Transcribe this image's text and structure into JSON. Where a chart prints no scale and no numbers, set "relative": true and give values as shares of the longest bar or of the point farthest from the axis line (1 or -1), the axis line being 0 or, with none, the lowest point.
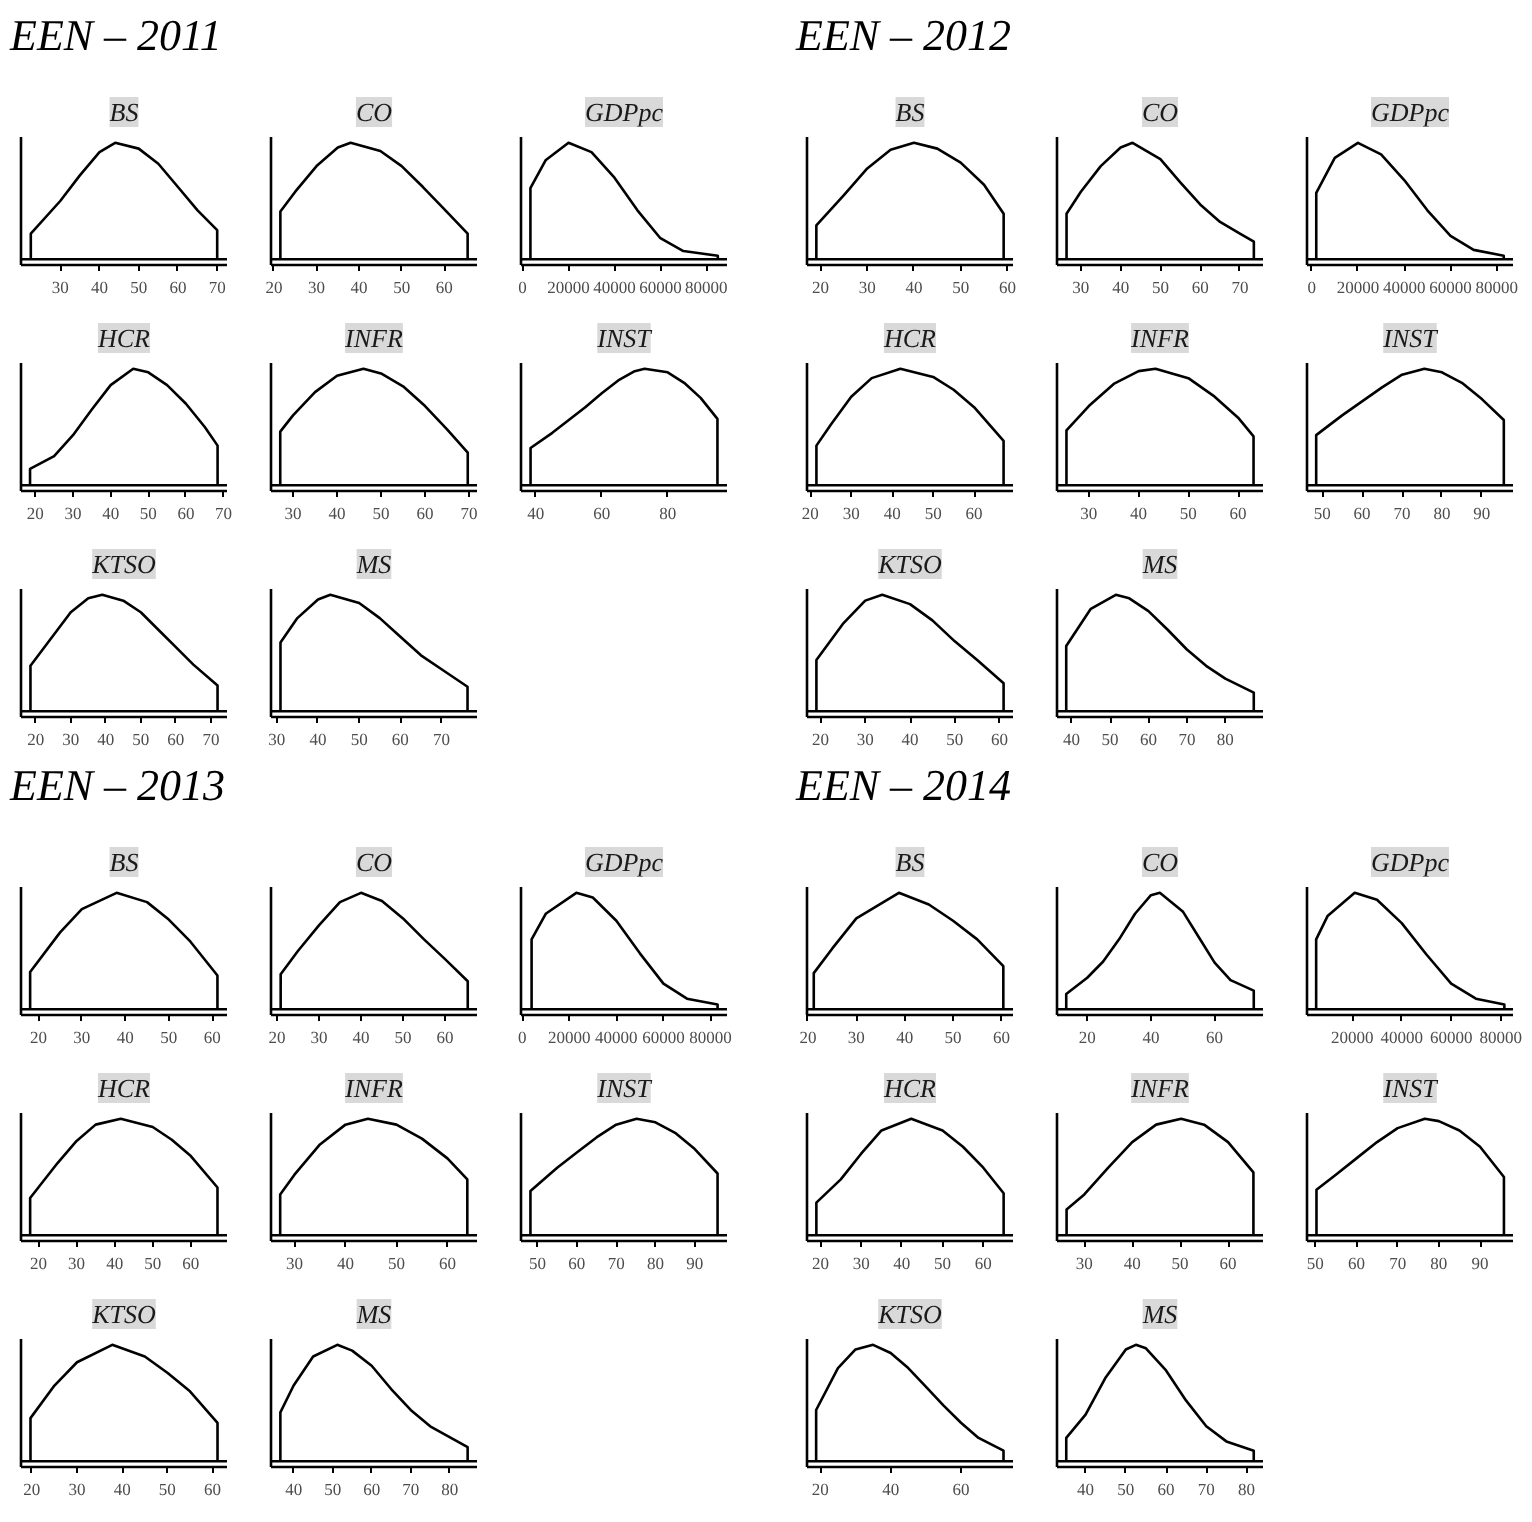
{
  "chart_data": [
    {
      "type": "line",
      "title": "BS",
      "annotations": [
        "EEN – 2011"
      ],
      "color": "#000000",
      "relative": true,
      "tick_labels": "x",
      "ref_lines": [
        {
          "axis": "y",
          "value": 0
        }
      ],
      "xlim": [
        20,
        72.5
      ],
      "xticks": [
        30,
        40,
        50,
        60,
        70
      ],
      "x": [
        22.5,
        22.5,
        30,
        35,
        40,
        44,
        50,
        55,
        60,
        65,
        70,
        70
      ],
      "values": [
        0,
        0.22,
        0.5,
        0.72,
        0.92,
        1,
        0.95,
        0.82,
        0.62,
        0.42,
        0.25,
        0
      ]
    },
    {
      "type": "line",
      "title": "CO",
      "color": "#000000",
      "relative": true,
      "tick_labels": "x",
      "ref_lines": [
        {
          "axis": "y",
          "value": 0
        }
      ],
      "xlim": [
        19.3,
        67.7
      ],
      "xticks": [
        20,
        30,
        40,
        50,
        60
      ],
      "x": [
        21.5,
        21.5,
        25,
        30,
        35,
        38,
        45,
        50,
        55,
        60,
        65.5,
        65.5
      ],
      "values": [
        0,
        0.41,
        0.58,
        0.8,
        0.96,
        1,
        0.93,
        0.8,
        0.62,
        0.43,
        0.22,
        0
      ]
    },
    {
      "type": "line",
      "title": "GDPpc",
      "color": "#000000",
      "relative": true,
      "tick_labels": "x",
      "ref_lines": [
        {
          "axis": "y",
          "value": 0
        }
      ],
      "xlim": [
        -700,
        89000
      ],
      "xticks": [
        0,
        20000,
        40000,
        60000,
        80000
      ],
      "x": [
        3400,
        3400,
        10000,
        20000,
        30000,
        40000,
        50000,
        60000,
        70000,
        85000,
        85000
      ],
      "values": [
        0,
        0.61,
        0.85,
        1,
        0.92,
        0.7,
        0.42,
        0.18,
        0.07,
        0.03,
        0
      ]
    },
    {
      "type": "line",
      "title": "HCR",
      "color": "#000000",
      "relative": true,
      "tick_labels": "x",
      "ref_lines": [
        {
          "axis": "y",
          "value": 0
        }
      ],
      "xlim": [
        16.2,
        70.9
      ],
      "xticks": [
        20,
        30,
        40,
        50,
        60,
        70
      ],
      "x": [
        18.6,
        18.6,
        25,
        30,
        35,
        40,
        46,
        50,
        55,
        60,
        65,
        68.4,
        68.4
      ],
      "values": [
        0,
        0.14,
        0.25,
        0.43,
        0.65,
        0.86,
        1,
        0.97,
        0.86,
        0.7,
        0.5,
        0.34,
        0
      ]
    },
    {
      "type": "line",
      "title": "INFR",
      "color": "#000000",
      "relative": true,
      "tick_labels": "x",
      "ref_lines": [
        {
          "axis": "y",
          "value": 0
        }
      ],
      "xlim": [
        25,
        71.8
      ],
      "xticks": [
        30,
        40,
        50,
        60,
        70
      ],
      "x": [
        27.1,
        27.1,
        30,
        35,
        40,
        46,
        50,
        55,
        60,
        65,
        69.7,
        69.7
      ],
      "values": [
        0,
        0.46,
        0.6,
        0.8,
        0.94,
        1,
        0.96,
        0.85,
        0.68,
        0.48,
        0.28,
        0
      ]
    },
    {
      "type": "line",
      "title": "INST",
      "color": "#000000",
      "relative": true,
      "tick_labels": "x",
      "ref_lines": [
        {
          "axis": "y",
          "value": 0
        }
      ],
      "xlim": [
        35.5,
        98
      ],
      "xticks": [
        40,
        60,
        80
      ],
      "x": [
        38.4,
        38.4,
        45,
        50,
        55,
        60,
        65,
        70,
        73,
        80,
        85,
        90,
        95.1,
        95.1
      ],
      "values": [
        0,
        0.32,
        0.45,
        0.56,
        0.67,
        0.79,
        0.9,
        0.98,
        1,
        0.97,
        0.88,
        0.75,
        0.57,
        0
      ]
    },
    {
      "type": "line",
      "title": "KTSO",
      "color": "#000000",
      "relative": true,
      "tick_labels": "x",
      "ref_lines": [
        {
          "axis": "y",
          "value": 0
        }
      ],
      "xlim": [
        15.8,
        74.6
      ],
      "xticks": [
        20,
        30,
        40,
        50,
        60,
        70
      ],
      "x": [
        18.5,
        18.5,
        25,
        30,
        35,
        39,
        45,
        50,
        55,
        60,
        65,
        71.9,
        71.9
      ],
      "values": [
        0,
        0.39,
        0.65,
        0.85,
        0.97,
        1,
        0.95,
        0.85,
        0.7,
        0.55,
        0.4,
        0.22,
        0
      ]
    },
    {
      "type": "line",
      "title": "MS",
      "color": "#000000",
      "relative": true,
      "tick_labels": "x",
      "ref_lines": [
        {
          "axis": "y",
          "value": 0
        }
      ],
      "xlim": [
        28.6,
        78.6
      ],
      "xticks": [
        30,
        40,
        50,
        60,
        70
      ],
      "x": [
        30.9,
        30.9,
        35,
        40,
        43,
        50,
        55,
        60,
        65,
        70,
        76.3,
        76.3
      ],
      "values": [
        0,
        0.59,
        0.8,
        0.96,
        1,
        0.93,
        0.8,
        0.64,
        0.48,
        0.36,
        0.21,
        0
      ]
    },
    {
      "type": "line",
      "title": "BS",
      "annotations": [
        "EEN – 2012"
      ],
      "color": "#000000",
      "relative": true,
      "tick_labels": "x",
      "ref_lines": [
        {
          "axis": "y",
          "value": 0
        }
      ],
      "xlim": [
        17.1,
        61.2
      ],
      "xticks": [
        20,
        30,
        40,
        50,
        60
      ],
      "x": [
        19.1,
        19.1,
        25,
        30,
        35,
        40,
        45,
        50,
        55,
        59.2,
        59.2
      ],
      "values": [
        0,
        0.29,
        0.55,
        0.78,
        0.94,
        1,
        0.95,
        0.83,
        0.64,
        0.39,
        0
      ]
    },
    {
      "type": "line",
      "title": "CO",
      "color": "#000000",
      "relative": true,
      "tick_labels": "x",
      "ref_lines": [
        {
          "axis": "y",
          "value": 0
        }
      ],
      "xlim": [
        24,
        75.8
      ],
      "xticks": [
        30,
        40,
        50,
        60,
        70
      ],
      "x": [
        26.4,
        26.4,
        30,
        35,
        40,
        43,
        50,
        55,
        60,
        65,
        70,
        73.5,
        73.5
      ],
      "values": [
        0,
        0.39,
        0.58,
        0.8,
        0.96,
        1,
        0.86,
        0.66,
        0.47,
        0.32,
        0.22,
        0.15,
        0
      ]
    },
    {
      "type": "line",
      "title": "GDPpc",
      "color": "#000000",
      "relative": true,
      "tick_labels": "x",
      "ref_lines": [
        {
          "axis": "y",
          "value": 0
        }
      ],
      "xlim": [
        -2000,
        87000
      ],
      "xticks": [
        0,
        20000,
        40000,
        60000,
        80000
      ],
      "x": [
        2000,
        2000,
        10000,
        20000,
        30000,
        40000,
        50000,
        60000,
        70000,
        83000,
        83000
      ],
      "values": [
        0,
        0.57,
        0.87,
        1,
        0.9,
        0.68,
        0.42,
        0.2,
        0.08,
        0.03,
        0
      ]
    },
    {
      "type": "line",
      "title": "HCR",
      "color": "#000000",
      "relative": true,
      "tick_labels": "x",
      "ref_lines": [
        {
          "axis": "y",
          "value": 0
        }
      ],
      "xlim": [
        19.2,
        69.5
      ],
      "xticks": [
        20,
        30,
        40,
        50,
        60
      ],
      "x": [
        21.5,
        21.5,
        25,
        30,
        35,
        42,
        50,
        55,
        60,
        67.2,
        67.2
      ],
      "values": [
        0,
        0.34,
        0.52,
        0.76,
        0.92,
        1,
        0.93,
        0.82,
        0.67,
        0.38,
        0
      ]
    },
    {
      "type": "line",
      "title": "INFR",
      "color": "#000000",
      "relative": true,
      "tick_labels": "x",
      "ref_lines": [
        {
          "axis": "y",
          "value": 0
        }
      ],
      "xlim": [
        23.6,
        65
      ],
      "xticks": [
        30,
        40,
        50,
        60
      ],
      "x": [
        25.5,
        25.5,
        30,
        35,
        40,
        43.4,
        50,
        55,
        60,
        63.1,
        63.1
      ],
      "values": [
        0,
        0.47,
        0.68,
        0.87,
        0.98,
        1,
        0.92,
        0.77,
        0.58,
        0.42,
        0
      ]
    },
    {
      "type": "line",
      "title": "INST",
      "color": "#000000",
      "relative": true,
      "tick_labels": "x",
      "ref_lines": [
        {
          "axis": "y",
          "value": 0
        }
      ],
      "xlim": [
        46.2,
        97.8
      ],
      "xticks": [
        50,
        60,
        70,
        80,
        90
      ],
      "x": [
        48.5,
        48.5,
        55,
        60,
        65,
        70,
        75.6,
        80,
        85,
        90,
        95.5,
        95.5
      ],
      "values": [
        0,
        0.43,
        0.6,
        0.72,
        0.84,
        0.95,
        1,
        0.97,
        0.88,
        0.74,
        0.56,
        0
      ]
    },
    {
      "type": "line",
      "title": "KTSO",
      "color": "#000000",
      "relative": true,
      "tick_labels": "x",
      "ref_lines": [
        {
          "axis": "y",
          "value": 0
        }
      ],
      "xlim": [
        17,
        63
      ],
      "xticks": [
        20,
        30,
        40,
        50,
        60
      ],
      "x": [
        19.1,
        19.1,
        25,
        30,
        33.8,
        40,
        45,
        50,
        55,
        60.9,
        60.9
      ],
      "values": [
        0,
        0.44,
        0.75,
        0.95,
        1,
        0.92,
        0.78,
        0.6,
        0.44,
        0.24,
        0
      ]
    },
    {
      "type": "line",
      "title": "MS",
      "color": "#000000",
      "relative": true,
      "tick_labels": "x",
      "ref_lines": [
        {
          "axis": "y",
          "value": 0
        }
      ],
      "xlim": [
        36.2,
        89.8
      ],
      "xticks": [
        40,
        50,
        60,
        70,
        80
      ],
      "x": [
        38.6,
        38.6,
        45,
        51.5,
        55,
        60,
        65,
        70,
        75,
        80,
        87.4,
        87.4
      ],
      "values": [
        0,
        0.56,
        0.88,
        1,
        0.97,
        0.86,
        0.7,
        0.53,
        0.39,
        0.28,
        0.16,
        0
      ]
    },
    {
      "type": "line",
      "title": "BS",
      "annotations": [
        "EEN – 2013"
      ],
      "color": "#000000",
      "relative": true,
      "tick_labels": "x",
      "ref_lines": [
        {
          "axis": "y",
          "value": 0
        }
      ],
      "xlim": [
        16,
        63.4
      ],
      "xticks": [
        20,
        30,
        40,
        50,
        60
      ],
      "x": [
        18.1,
        18.1,
        25,
        30,
        38,
        45,
        50,
        55,
        61.2,
        61.2
      ],
      "values": [
        0,
        0.32,
        0.66,
        0.86,
        1,
        0.92,
        0.77,
        0.58,
        0.29,
        0
      ]
    },
    {
      "type": "line",
      "title": "CO",
      "color": "#000000",
      "relative": true,
      "tick_labels": "x",
      "ref_lines": [
        {
          "axis": "y",
          "value": 0
        }
      ],
      "xlim": [
        18.6,
        67.6
      ],
      "xticks": [
        20,
        30,
        40,
        50,
        60
      ],
      "x": [
        20.9,
        20.9,
        25,
        30,
        35,
        40,
        45,
        50,
        55,
        60,
        65.4,
        65.4
      ],
      "values": [
        0,
        0.3,
        0.5,
        0.72,
        0.92,
        1,
        0.93,
        0.78,
        0.6,
        0.43,
        0.24,
        0
      ]
    },
    {
      "type": "line",
      "title": "GDPpc",
      "color": "#000000",
      "relative": true,
      "tick_labels": "x",
      "ref_lines": [
        {
          "axis": "y",
          "value": 0
        }
      ],
      "xlim": [
        -500,
        87000
      ],
      "xticks": [
        0,
        20000,
        40000,
        60000,
        80000
      ],
      "x": [
        4000,
        4000,
        10000,
        23000,
        30000,
        40000,
        50000,
        60000,
        70000,
        83000,
        83000
      ],
      "values": [
        0,
        0.6,
        0.82,
        1,
        0.96,
        0.76,
        0.48,
        0.22,
        0.09,
        0.04,
        0
      ]
    },
    {
      "type": "line",
      "title": "HCR",
      "color": "#000000",
      "relative": true,
      "tick_labels": "x",
      "ref_lines": [
        {
          "axis": "y",
          "value": 0
        }
      ],
      "xlim": [
        15.4,
        69.5
      ],
      "xticks": [
        20,
        30,
        40,
        50,
        60
      ],
      "x": [
        17.8,
        17.8,
        25,
        30,
        35,
        41.6,
        50,
        55,
        60,
        67,
        67
      ],
      "values": [
        0,
        0.32,
        0.62,
        0.81,
        0.95,
        1,
        0.93,
        0.82,
        0.68,
        0.41,
        0
      ]
    },
    {
      "type": "line",
      "title": "INFR",
      "color": "#000000",
      "relative": true,
      "tick_labels": "x",
      "ref_lines": [
        {
          "axis": "y",
          "value": 0
        }
      ],
      "xlim": [
        25.4,
        65.8
      ],
      "xticks": [
        30,
        40,
        50,
        60
      ],
      "x": [
        27.2,
        27.2,
        30,
        35,
        40,
        44.4,
        50,
        55,
        60,
        63.9,
        63.9
      ],
      "values": [
        0,
        0.35,
        0.52,
        0.78,
        0.95,
        1,
        0.95,
        0.83,
        0.66,
        0.48,
        0
      ]
    },
    {
      "type": "line",
      "title": "INST",
      "color": "#000000",
      "relative": true,
      "tick_labels": "x",
      "ref_lines": [
        {
          "axis": "y",
          "value": 0
        }
      ],
      "xlim": [
        45.8,
        98.2
      ],
      "xticks": [
        50,
        60,
        70,
        80,
        90
      ],
      "x": [
        48.2,
        48.2,
        55,
        60,
        65,
        70,
        75.2,
        80,
        85,
        90,
        95.8,
        95.8
      ],
      "values": [
        0,
        0.38,
        0.58,
        0.71,
        0.84,
        0.95,
        1,
        0.97,
        0.88,
        0.74,
        0.53,
        0
      ]
    },
    {
      "type": "line",
      "title": "KTSO",
      "color": "#000000",
      "relative": true,
      "tick_labels": "x",
      "ref_lines": [
        {
          "axis": "y",
          "value": 0
        }
      ],
      "xlim": [
        17.6,
        63.2
      ],
      "xticks": [
        20,
        30,
        40,
        50,
        60
      ],
      "x": [
        19.7,
        19.7,
        25,
        30,
        37.8,
        45,
        50,
        55,
        61.1,
        61.1
      ],
      "values": [
        0,
        0.37,
        0.65,
        0.85,
        1,
        0.9,
        0.76,
        0.6,
        0.33,
        0
      ]
    },
    {
      "type": "line",
      "title": "MS",
      "color": "#000000",
      "relative": true,
      "tick_labels": "x",
      "ref_lines": [
        {
          "axis": "y",
          "value": 0
        }
      ],
      "xlim": [
        34.2,
        87
      ],
      "xticks": [
        40,
        50,
        60,
        70,
        80
      ],
      "x": [
        36.6,
        36.6,
        40,
        45,
        51.2,
        55,
        60,
        65,
        70,
        75,
        84.6,
        84.6
      ],
      "values": [
        0,
        0.42,
        0.65,
        0.9,
        1,
        0.95,
        0.82,
        0.62,
        0.44,
        0.3,
        0.12,
        0
      ]
    },
    {
      "type": "line",
      "title": "BS",
      "annotations": [
        "EEN – 2014"
      ],
      "color": "#000000",
      "relative": true,
      "tick_labels": "x",
      "ref_lines": [
        {
          "axis": "y",
          "value": 0
        }
      ],
      "xlim": [
        19.8,
        62.4
      ],
      "xticks": [
        20,
        30,
        40,
        50,
        60
      ],
      "x": [
        21.2,
        21.2,
        25,
        30,
        38.8,
        45,
        50,
        55,
        60.4,
        60.4
      ],
      "values": [
        0,
        0.31,
        0.52,
        0.78,
        1,
        0.9,
        0.76,
        0.6,
        0.37,
        0
      ]
    },
    {
      "type": "line",
      "title": "CO",
      "color": "#000000",
      "relative": true,
      "tick_labels": "x",
      "ref_lines": [
        {
          "axis": "y",
          "value": 0
        }
      ],
      "xlim": [
        10.5,
        75.2
      ],
      "xticks": [
        20,
        40,
        60
      ],
      "x": [
        13.4,
        13.4,
        20,
        25,
        30,
        35,
        40,
        42.8,
        50,
        55,
        60,
        65,
        72.3,
        72.3
      ],
      "values": [
        0,
        0.13,
        0.27,
        0.41,
        0.6,
        0.82,
        0.98,
        1,
        0.84,
        0.62,
        0.4,
        0.25,
        0.16,
        0
      ]
    },
    {
      "type": "line",
      "title": "GDPpc",
      "color": "#000000",
      "relative": true,
      "tick_labels": "x",
      "ref_lines": [
        {
          "axis": "y",
          "value": 0
        }
      ],
      "xlim": [
        1700,
        85000
      ],
      "xticks": [
        20000,
        40000,
        60000,
        80000
      ],
      "x": [
        5400,
        5400,
        10000,
        21000,
        30000,
        40000,
        50000,
        60000,
        70000,
        81500,
        81500
      ],
      "values": [
        0,
        0.6,
        0.8,
        1,
        0.94,
        0.74,
        0.47,
        0.22,
        0.09,
        0.04,
        0
      ]
    },
    {
      "type": "line",
      "title": "HCR",
      "color": "#000000",
      "relative": true,
      "tick_labels": "x",
      "ref_lines": [
        {
          "axis": "y",
          "value": 0
        }
      ],
      "xlim": [
        16.7,
        67.3
      ],
      "xticks": [
        20,
        30,
        40,
        50,
        60
      ],
      "x": [
        19,
        19,
        25,
        30,
        35,
        42.3,
        50,
        55,
        60,
        65,
        65
      ],
      "values": [
        0,
        0.28,
        0.48,
        0.7,
        0.9,
        1,
        0.9,
        0.76,
        0.58,
        0.36,
        0
      ]
    },
    {
      "type": "line",
      "title": "INFR",
      "color": "#000000",
      "relative": true,
      "tick_labels": "x",
      "ref_lines": [
        {
          "axis": "y",
          "value": 0
        }
      ],
      "xlim": [
        24.3,
        67.3
      ],
      "xticks": [
        30,
        40,
        50,
        60
      ],
      "x": [
        26.3,
        26.3,
        30,
        35,
        40,
        45,
        50.2,
        55,
        60,
        65.3,
        65.3
      ],
      "values": [
        0,
        0.22,
        0.35,
        0.58,
        0.8,
        0.95,
        1,
        0.95,
        0.8,
        0.54,
        0
      ]
    },
    {
      "type": "line",
      "title": "INST",
      "color": "#000000",
      "relative": true,
      "tick_labels": "x",
      "ref_lines": [
        {
          "axis": "y",
          "value": 0
        }
      ],
      "xlim": [
        48,
        98
      ],
      "xticks": [
        50,
        60,
        70,
        80,
        90
      ],
      "x": [
        50.3,
        50.3,
        55,
        60,
        65,
        70,
        76.6,
        80,
        85,
        90,
        95.8,
        95.8
      ],
      "values": [
        0,
        0.39,
        0.52,
        0.66,
        0.8,
        0.92,
        1,
        0.98,
        0.9,
        0.76,
        0.5,
        0
      ]
    },
    {
      "type": "line",
      "title": "KTSO",
      "color": "#000000",
      "relative": true,
      "tick_labels": "x",
      "ref_lines": [
        {
          "axis": "y",
          "value": 0
        }
      ],
      "xlim": [
        16.2,
        74.8
      ],
      "xticks": [
        20,
        40,
        60
      ],
      "x": [
        18.8,
        18.8,
        25,
        30,
        35,
        40,
        45,
        50,
        55,
        60,
        65,
        72.1,
        72.1
      ],
      "values": [
        0,
        0.44,
        0.8,
        0.96,
        1,
        0.93,
        0.8,
        0.64,
        0.48,
        0.33,
        0.2,
        0.09,
        0
      ]
    },
    {
      "type": "line",
      "title": "MS",
      "color": "#000000",
      "relative": true,
      "tick_labels": "x",
      "ref_lines": [
        {
          "axis": "y",
          "value": 0
        }
      ],
      "xlim": [
        32.9,
        84.1
      ],
      "xticks": [
        40,
        50,
        60,
        70,
        80
      ],
      "x": [
        35.2,
        35.2,
        40,
        45,
        50,
        52.5,
        55,
        60,
        65,
        70,
        75,
        81.8,
        81.8
      ],
      "values": [
        0,
        0.2,
        0.4,
        0.72,
        0.96,
        1,
        0.97,
        0.78,
        0.52,
        0.3,
        0.17,
        0.09,
        0
      ]
    }
  ]
}
